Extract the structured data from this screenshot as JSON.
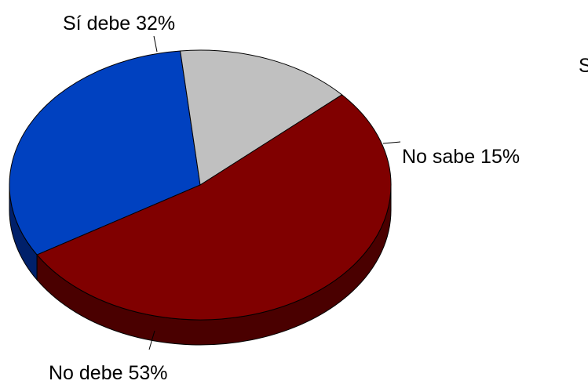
{
  "chart_data": {
    "type": "pie",
    "style": "3d",
    "title": "",
    "series": [
      {
        "label": "Sí debe",
        "pct_label": "32%",
        "value": 32,
        "color": "#0041C0",
        "side_color": "#00206A"
      },
      {
        "label": "No sabe",
        "pct_label": "15%",
        "value": 15,
        "color": "#C0C0C0",
        "side_color": "#6E6E6E"
      },
      {
        "label": "No debe",
        "pct_label": "53%",
        "value": 53,
        "color": "#800000",
        "side_color": "#4A0000"
      }
    ],
    "clipped_text": "S"
  }
}
